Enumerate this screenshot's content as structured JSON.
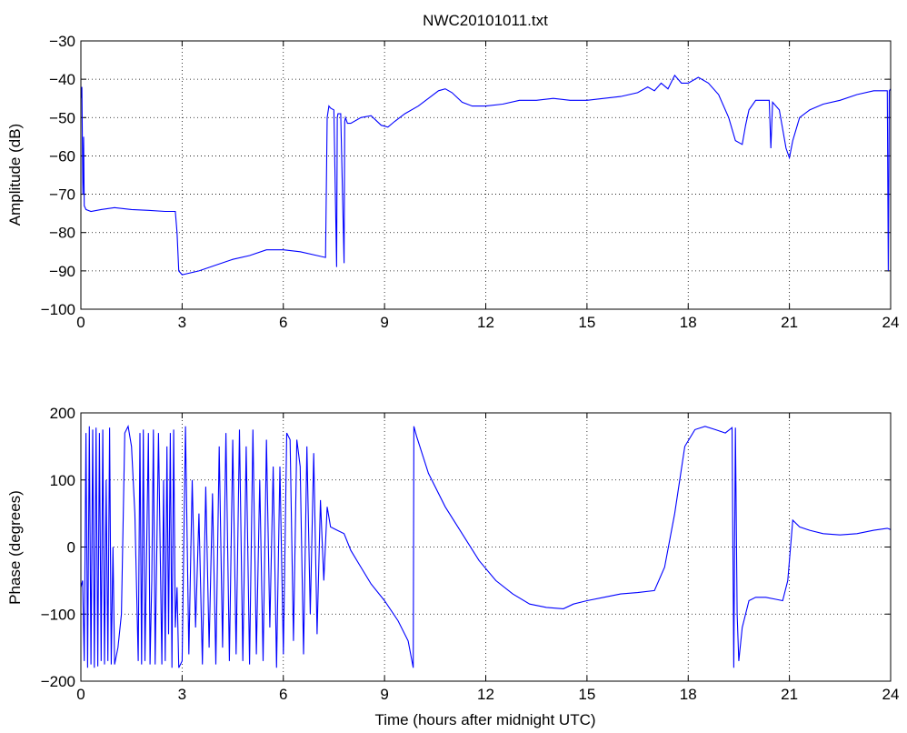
{
  "chart_data": [
    {
      "type": "line",
      "title": "NWC20101011.txt",
      "xlabel": "",
      "ylabel": "Amplitude (dB)",
      "xlim": [
        0,
        24
      ],
      "ylim": [
        -100,
        -30
      ],
      "xticks": [
        0,
        3,
        6,
        9,
        12,
        15,
        18,
        21,
        24
      ],
      "yticks": [
        -100,
        -90,
        -80,
        -70,
        -60,
        -50,
        -40,
        -30
      ],
      "grid": true,
      "color": "#0000ff",
      "series": [
        {
          "x": [
            0,
            0.03,
            0.06,
            0.08,
            0.1,
            0.15,
            0.3,
            0.6,
            1.0,
            1.5,
            2.0,
            2.5,
            2.8,
            2.85,
            2.9,
            3.0,
            3.5,
            4.0,
            4.5,
            5.0,
            5.5,
            6.0,
            6.5,
            7.0,
            7.25,
            7.3,
            7.35,
            7.4,
            7.5,
            7.58,
            7.6,
            7.62,
            7.7,
            7.8,
            7.82,
            7.84,
            7.9,
            8.0,
            8.3,
            8.6,
            8.9,
            9.1,
            9.3,
            9.6,
            10.0,
            10.3,
            10.6,
            10.8,
            11.0,
            11.3,
            11.6,
            12.0,
            12.5,
            13.0,
            13.5,
            14.0,
            14.5,
            15.0,
            15.5,
            16.0,
            16.5,
            16.8,
            17.0,
            17.2,
            17.4,
            17.6,
            17.8,
            18.0,
            18.3,
            18.6,
            18.9,
            19.2,
            19.4,
            19.6,
            19.7,
            19.8,
            20.0,
            20.2,
            20.4,
            20.45,
            20.5,
            20.7,
            20.9,
            21.0,
            21.1,
            21.3,
            21.6,
            22.0,
            22.5,
            23.0,
            23.5,
            23.9,
            23.93,
            23.96,
            24.0
          ],
          "values": [
            -45,
            -42,
            -70,
            -55,
            -73,
            -74,
            -74.5,
            -74,
            -73.5,
            -74,
            -74.2,
            -74.5,
            -74.5,
            -80,
            -90,
            -91,
            -90,
            -88.5,
            -87,
            -86,
            -84.5,
            -84.5,
            -85,
            -86,
            -86.5,
            -50,
            -47,
            -47.5,
            -48,
            -89,
            -50,
            -49,
            -49,
            -88,
            -51,
            -50,
            -51.5,
            -51.5,
            -50,
            -49.5,
            -52,
            -52.5,
            -51,
            -49,
            -47,
            -45,
            -43,
            -42.5,
            -43.5,
            -46,
            -47,
            -47,
            -46.5,
            -45.5,
            -45.5,
            -45,
            -45.5,
            -45.5,
            -45,
            -44.5,
            -43.5,
            -42,
            -43,
            -41,
            -42.5,
            -39,
            -41,
            -41,
            -39.5,
            -41,
            -44,
            -50,
            -56,
            -57,
            -52,
            -48,
            -45.5,
            -45.5,
            -45.5,
            -58,
            -46,
            -48,
            -58,
            -60.5,
            -56,
            -50,
            -48,
            -46.5,
            -45.5,
            -44,
            -43,
            -43,
            -90,
            -43,
            -42.5
          ]
        }
      ]
    },
    {
      "type": "line",
      "title": "",
      "xlabel": "Time (hours after midnight UTC)",
      "ylabel": "Phase (degrees)",
      "xlim": [
        0,
        24
      ],
      "ylim": [
        -200,
        200
      ],
      "xticks": [
        0,
        3,
        6,
        9,
        12,
        15,
        18,
        21,
        24
      ],
      "yticks": [
        -200,
        -100,
        0,
        100,
        200
      ],
      "grid": true,
      "color": "#0000ff",
      "series": [
        {
          "x": [
            0,
            0.05,
            0.1,
            0.15,
            0.2,
            0.25,
            0.3,
            0.35,
            0.4,
            0.45,
            0.5,
            0.55,
            0.6,
            0.65,
            0.7,
            0.75,
            0.8,
            0.85,
            0.9,
            0.95,
            1.0,
            1.1,
            1.2,
            1.3,
            1.4,
            1.5,
            1.6,
            1.7,
            1.75,
            1.8,
            1.85,
            1.9,
            2.0,
            2.05,
            2.1,
            2.15,
            2.2,
            2.3,
            2.4,
            2.45,
            2.5,
            2.55,
            2.6,
            2.65,
            2.7,
            2.75,
            2.8,
            2.85,
            2.9,
            3.0,
            3.1,
            3.2,
            3.3,
            3.4,
            3.5,
            3.6,
            3.7,
            3.8,
            3.9,
            4.0,
            4.1,
            4.2,
            4.3,
            4.4,
            4.5,
            4.6,
            4.7,
            4.8,
            4.9,
            5.0,
            5.1,
            5.2,
            5.3,
            5.4,
            5.5,
            5.6,
            5.7,
            5.8,
            5.9,
            6.0,
            6.1,
            6.2,
            6.3,
            6.4,
            6.5,
            6.6,
            6.7,
            6.8,
            6.9,
            7.0,
            7.1,
            7.2,
            7.3,
            7.4,
            7.6,
            7.8,
            8.0,
            8.3,
            8.6,
            9.0,
            9.4,
            9.7,
            9.85,
            9.87,
            9.95,
            10.3,
            10.8,
            11.3,
            11.8,
            12.3,
            12.8,
            13.3,
            13.8,
            14.3,
            14.6,
            15.0,
            15.5,
            16.0,
            16.5,
            17.0,
            17.3,
            17.6,
            17.9,
            18.2,
            18.5,
            18.8,
            19.1,
            19.3,
            19.35,
            19.4,
            19.45,
            19.5,
            19.6,
            19.8,
            20.0,
            20.3,
            20.6,
            20.8,
            20.95,
            21.1,
            21.3,
            21.6,
            22.0,
            22.5,
            23.0,
            23.5,
            23.9,
            24.0
          ],
          "values": [
            -60,
            -50,
            -170,
            170,
            -180,
            180,
            -175,
            175,
            -180,
            178,
            -178,
            170,
            -170,
            175,
            -175,
            100,
            -170,
            178,
            -175,
            0,
            -175,
            -150,
            -100,
            170,
            180,
            150,
            50,
            -170,
            170,
            -175,
            175,
            -170,
            170,
            -175,
            -50,
            175,
            -175,
            170,
            -175,
            100,
            -170,
            150,
            -130,
            170,
            -180,
            175,
            -120,
            -60,
            -180,
            -170,
            180,
            -160,
            100,
            -120,
            50,
            -175,
            90,
            -150,
            80,
            -175,
            150,
            -150,
            170,
            -170,
            160,
            -160,
            175,
            -170,
            150,
            -175,
            175,
            -160,
            100,
            -170,
            160,
            -120,
            120,
            -180,
            120,
            -160,
            170,
            160,
            -140,
            160,
            120,
            -160,
            150,
            -100,
            140,
            -130,
            70,
            -50,
            60,
            30,
            25,
            20,
            -5,
            -30,
            -55,
            -80,
            -110,
            -140,
            -180,
            180,
            165,
            110,
            60,
            20,
            -20,
            -50,
            -70,
            -85,
            -90,
            -92,
            -85,
            -80,
            -75,
            -70,
            -68,
            -65,
            -30,
            50,
            150,
            175,
            180,
            175,
            170,
            178,
            -180,
            178,
            -100,
            -170,
            -120,
            -80,
            -75,
            -75,
            -78,
            -80,
            -50,
            40,
            30,
            25,
            20,
            18,
            20,
            25,
            28,
            26
          ]
        }
      ]
    }
  ]
}
